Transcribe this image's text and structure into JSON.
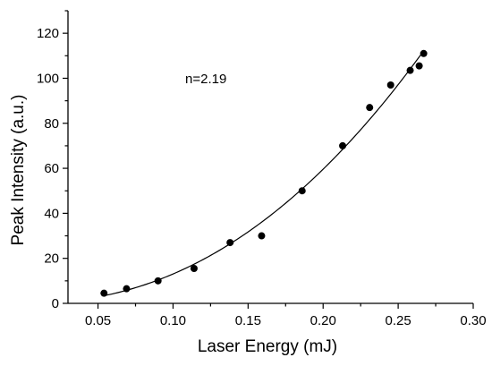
{
  "chart_data": {
    "type": "scatter",
    "title": "",
    "xlabel": "Laser Energy (mJ)",
    "ylabel": "Peak Intensity (a.u.)",
    "xlim": [
      0.03,
      0.3
    ],
    "ylim": [
      0,
      130
    ],
    "xticks": [
      0.05,
      0.1,
      0.15,
      0.2,
      0.25,
      0.3
    ],
    "xtick_labels": [
      "0.05",
      "0.10",
      "0.15",
      "0.20",
      "0.25",
      "0.30"
    ],
    "yticks": [
      0,
      20,
      40,
      60,
      80,
      100,
      120
    ],
    "ytick_labels": [
      "0",
      "20",
      "40",
      "60",
      "80",
      "100",
      "120"
    ],
    "grid": false,
    "annotation": "n=2.19",
    "series": [
      {
        "type": "scatter",
        "marker": "filled-circle",
        "color": "#000000",
        "x": [
          0.054,
          0.069,
          0.09,
          0.114,
          0.138,
          0.159,
          0.186,
          0.213,
          0.231,
          0.245,
          0.258,
          0.264,
          0.267
        ],
        "y": [
          4.5,
          6.5,
          10,
          15.5,
          27,
          30,
          50,
          70,
          87,
          97,
          103.5,
          105.5,
          111
        ]
      },
      {
        "type": "line",
        "fit": "power-law",
        "exponent": 2.19,
        "color": "#000000",
        "x_range": [
          0.054,
          0.267
        ]
      }
    ]
  }
}
